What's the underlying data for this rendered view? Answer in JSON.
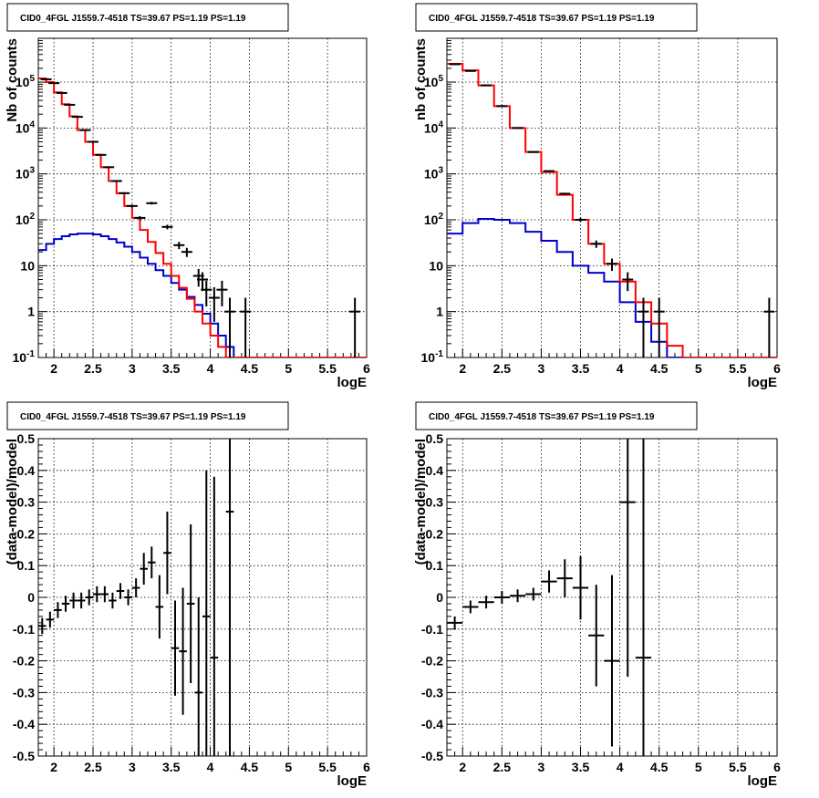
{
  "chart_data": [
    {
      "type": "line",
      "title": "CID0_4FGL J1559.7-4518 TS=39.67 PS=1.19 PS=1.19",
      "xlabel": "logE",
      "ylabel": "Nb of counts",
      "xlim": [
        1.8,
        6.0
      ],
      "ylim": [
        0.1,
        900000
      ],
      "yscale": "log",
      "grid": true,
      "x_ticks": [
        "2",
        "2.5",
        "3",
        "3.5",
        "4",
        "4.5",
        "5",
        "5.5",
        "6"
      ],
      "y_ticks": [
        {
          "base": "10",
          "exp": "-1"
        },
        {
          "base": "1",
          "exp": ""
        },
        {
          "base": "10",
          "exp": ""
        },
        {
          "base": "10",
          "exp": "2"
        },
        {
          "base": "10",
          "exp": "3"
        },
        {
          "base": "10",
          "exp": "4"
        },
        {
          "base": "10",
          "exp": "5"
        }
      ],
      "colors": {
        "model": "#ff0000",
        "component": "#0000cc",
        "data": "#000000"
      },
      "bin_edges": [
        1.8,
        1.9,
        2.0,
        2.1,
        2.2,
        2.3,
        2.4,
        2.5,
        2.6,
        2.7,
        2.8,
        2.9,
        3.0,
        3.1,
        3.2,
        3.3,
        3.4,
        3.5,
        3.6,
        3.7,
        3.8,
        3.9,
        4.0,
        4.1,
        4.2,
        4.3,
        4.4,
        4.5,
        4.6,
        4.7,
        4.8,
        4.9,
        5.0,
        5.1,
        5.2,
        5.3,
        5.4,
        5.5,
        5.6,
        5.7,
        5.8,
        5.9,
        6.0
      ],
      "model": [
        120000,
        100000,
        60000,
        33000,
        18000,
        9000,
        5000,
        2600,
        1400,
        700,
        380,
        200,
        110,
        60,
        33,
        19,
        11,
        6,
        3.3,
        1.9,
        1.0,
        0.55,
        0.3,
        0.17,
        0.1,
        0.06,
        0.1,
        0.1,
        0.1,
        0.1,
        0.1,
        0.1,
        0.1,
        0.1,
        0.1,
        0.1,
        0.1,
        0.1,
        0.1,
        0.1,
        0.1,
        0.1
      ],
      "component": [
        22,
        30,
        38,
        44,
        48,
        50,
        50,
        48,
        44,
        38,
        32,
        26,
        20,
        15,
        11,
        8,
        6,
        4.2,
        3,
        2.1,
        1.4,
        0.9,
        0.55,
        0.3,
        0.17,
        0.1,
        0.1,
        0.1,
        0.1,
        0.1,
        0.1,
        0.1,
        0.1,
        0.1,
        0.1,
        0.1,
        0.1,
        0.1,
        0.1,
        0.1,
        0.1,
        0.1
      ],
      "data": [
        {
          "x": 1.9,
          "y": 115000,
          "err": 340
        },
        {
          "x": 2.0,
          "y": 95000,
          "err": 310
        },
        {
          "x": 2.1,
          "y": 58000,
          "err": 240
        },
        {
          "x": 2.2,
          "y": 32000,
          "err": 180
        },
        {
          "x": 2.3,
          "y": 17500,
          "err": 130
        },
        {
          "x": 2.4,
          "y": 9000,
          "err": 95
        },
        {
          "x": 2.5,
          "y": 5000,
          "err": 70
        },
        {
          "x": 2.6,
          "y": 2600,
          "err": 51
        },
        {
          "x": 2.7,
          "y": 1400,
          "err": 37
        },
        {
          "x": 2.8,
          "y": 700,
          "err": 26
        },
        {
          "x": 2.9,
          "y": 380,
          "err": 19
        },
        {
          "x": 3.0,
          "y": 200,
          "err": 14
        },
        {
          "x": 3.1,
          "y": 110,
          "err": 10
        },
        {
          "x": 3.25,
          "y": 230,
          "err": 15
        },
        {
          "x": 3.45,
          "y": 70,
          "err": 8
        },
        {
          "x": 3.6,
          "y": 28,
          "err": 5
        },
        {
          "x": 3.7,
          "y": 20,
          "err": 4.5
        },
        {
          "x": 3.85,
          "y": 6,
          "err": 2.5
        },
        {
          "x": 3.9,
          "y": 5,
          "err": 2.2
        },
        {
          "x": 3.95,
          "y": 3,
          "err": 1.7
        },
        {
          "x": 4.05,
          "y": 2,
          "err": 1.4
        },
        {
          "x": 4.15,
          "y": 3,
          "err": 1.7
        },
        {
          "x": 4.25,
          "y": 1,
          "err": 1.0
        },
        {
          "x": 4.45,
          "y": 1,
          "err": 1.0
        },
        {
          "x": 5.85,
          "y": 1,
          "err": 1.0
        }
      ]
    },
    {
      "type": "line",
      "title": "CID0_4FGL J1559.7-4518 TS=39.67 PS=1.19 PS=1.19",
      "xlabel": "logE",
      "ylabel": "nb of counts",
      "xlim": [
        1.8,
        6.0
      ],
      "ylim": [
        0.1,
        900000
      ],
      "yscale": "log",
      "grid": true,
      "x_ticks": [
        "2",
        "2.5",
        "3",
        "3.5",
        "4",
        "4.5",
        "5",
        "5.5",
        "6"
      ],
      "y_ticks": [
        {
          "base": "10",
          "exp": "-1"
        },
        {
          "base": "1",
          "exp": ""
        },
        {
          "base": "10",
          "exp": ""
        },
        {
          "base": "10",
          "exp": "2"
        },
        {
          "base": "10",
          "exp": "3"
        },
        {
          "base": "10",
          "exp": "4"
        },
        {
          "base": "10",
          "exp": "5"
        }
      ],
      "colors": {
        "model": "#ff0000",
        "component": "#0000cc",
        "data": "#000000"
      },
      "bin_edges": [
        1.8,
        2.0,
        2.2,
        2.4,
        2.6,
        2.8,
        3.0,
        3.2,
        3.4,
        3.6,
        3.8,
        4.0,
        4.2,
        4.4,
        4.6,
        4.8,
        5.0,
        5.2,
        5.4,
        5.6,
        5.8,
        6.0
      ],
      "model": [
        250000,
        180000,
        85000,
        30000,
        10000,
        3000,
        1100,
        350,
        100,
        30,
        11,
        4.5,
        1.6,
        0.55,
        0.18,
        0.1,
        0.1,
        0.1,
        0.1,
        0.1,
        0.1
      ],
      "component": [
        50,
        85,
        105,
        100,
        85,
        55,
        35,
        20,
        10,
        7,
        4.5,
        1.6,
        0.6,
        0.22,
        0.1,
        0.1,
        0.1,
        0.1,
        0.1,
        0.1,
        0.1
      ],
      "data": [
        {
          "x": 1.9,
          "y": 245000,
          "err": 500
        },
        {
          "x": 2.1,
          "y": 175000,
          "err": 420
        },
        {
          "x": 2.3,
          "y": 85000,
          "err": 290
        },
        {
          "x": 2.5,
          "y": 30000,
          "err": 170
        },
        {
          "x": 2.7,
          "y": 10000,
          "err": 100
        },
        {
          "x": 2.9,
          "y": 3000,
          "err": 55
        },
        {
          "x": 3.1,
          "y": 1150,
          "err": 34
        },
        {
          "x": 3.3,
          "y": 370,
          "err": 19
        },
        {
          "x": 3.5,
          "y": 100,
          "err": 10
        },
        {
          "x": 3.7,
          "y": 30,
          "err": 5.5
        },
        {
          "x": 3.9,
          "y": 11,
          "err": 3.3
        },
        {
          "x": 4.1,
          "y": 5,
          "err": 2.2
        },
        {
          "x": 4.3,
          "y": 1,
          "err": 1.0
        },
        {
          "x": 4.5,
          "y": 1,
          "err": 1.0
        },
        {
          "x": 5.9,
          "y": 1,
          "err": 1.0
        }
      ]
    },
    {
      "type": "scatter",
      "title": "CID0_4FGL J1559.7-4518 TS=39.67 PS=1.19 PS=1.19",
      "xlabel": "logE",
      "ylabel": "(data-model)/model",
      "xlim": [
        1.8,
        6.0
      ],
      "ylim": [
        -0.5,
        0.5
      ],
      "yscale": "linear",
      "grid": true,
      "x_ticks": [
        "2",
        "2.5",
        "3",
        "3.5",
        "4",
        "4.5",
        "5",
        "5.5",
        "6"
      ],
      "y_ticks": [
        "-0.5",
        "-0.4",
        "-0.3",
        "-0.2",
        "-0.1",
        "0",
        "0.1",
        "0.2",
        "0.3",
        "0.4",
        "0.5"
      ],
      "colors": {
        "data": "#000000"
      },
      "points": [
        {
          "x": 1.85,
          "y": -0.09,
          "xerr": 0.05,
          "yerr": 0.025
        },
        {
          "x": 1.95,
          "y": -0.07,
          "xerr": 0.05,
          "yerr": 0.025
        },
        {
          "x": 2.05,
          "y": -0.04,
          "xerr": 0.05,
          "yerr": 0.025
        },
        {
          "x": 2.15,
          "y": -0.02,
          "xerr": 0.05,
          "yerr": 0.025
        },
        {
          "x": 2.25,
          "y": -0.01,
          "xerr": 0.05,
          "yerr": 0.025
        },
        {
          "x": 2.35,
          "y": -0.01,
          "xerr": 0.05,
          "yerr": 0.025
        },
        {
          "x": 2.45,
          "y": 0.0,
          "xerr": 0.05,
          "yerr": 0.025
        },
        {
          "x": 2.55,
          "y": 0.01,
          "xerr": 0.05,
          "yerr": 0.025
        },
        {
          "x": 2.65,
          "y": 0.01,
          "xerr": 0.05,
          "yerr": 0.025
        },
        {
          "x": 2.75,
          "y": -0.01,
          "xerr": 0.05,
          "yerr": 0.025
        },
        {
          "x": 2.85,
          "y": 0.02,
          "xerr": 0.05,
          "yerr": 0.025
        },
        {
          "x": 2.95,
          "y": 0.0,
          "xerr": 0.05,
          "yerr": 0.025
        },
        {
          "x": 3.05,
          "y": 0.03,
          "xerr": 0.05,
          "yerr": 0.03
        },
        {
          "x": 3.15,
          "y": 0.09,
          "xerr": 0.05,
          "yerr": 0.05
        },
        {
          "x": 3.25,
          "y": 0.11,
          "xerr": 0.05,
          "yerr": 0.05
        },
        {
          "x": 3.35,
          "y": -0.03,
          "xerr": 0.05,
          "yerr": 0.1
        },
        {
          "x": 3.45,
          "y": 0.14,
          "xerr": 0.05,
          "yerr": 0.13
        },
        {
          "x": 3.55,
          "y": -0.16,
          "xerr": 0.05,
          "yerr": 0.15
        },
        {
          "x": 3.65,
          "y": -0.17,
          "xerr": 0.05,
          "yerr": 0.2
        },
        {
          "x": 3.75,
          "y": -0.02,
          "xerr": 0.05,
          "yerr": 0.25
        },
        {
          "x": 3.85,
          "y": -0.3,
          "xerr": 0.05,
          "yerr": 0.3
        },
        {
          "x": 3.95,
          "y": -0.06,
          "xerr": 0.05,
          "yerr": 0.46
        },
        {
          "x": 4.05,
          "y": -0.19,
          "xerr": 0.05,
          "yerr": 0.57
        },
        {
          "x": 4.25,
          "y": 0.27,
          "xerr": 0.05,
          "yerr": 1.0
        }
      ]
    },
    {
      "type": "scatter",
      "title": "CID0_4FGL J1559.7-4518 TS=39.67 PS=1.19 PS=1.19",
      "xlabel": "logE",
      "ylabel": "(data-model)/model",
      "xlim": [
        1.8,
        6.0
      ],
      "ylim": [
        -0.5,
        0.5
      ],
      "yscale": "linear",
      "grid": true,
      "x_ticks": [
        "2",
        "2.5",
        "3",
        "3.5",
        "4",
        "4.5",
        "5",
        "5.5",
        "6"
      ],
      "y_ticks": [
        "-0.5",
        "-0.4",
        "-0.3",
        "-0.2",
        "-0.1",
        "0",
        "0.1",
        "0.2",
        "0.3",
        "0.4",
        "0.5"
      ],
      "colors": {
        "data": "#000000"
      },
      "points": [
        {
          "x": 1.9,
          "y": -0.08,
          "xerr": 0.1,
          "yerr": 0.02
        },
        {
          "x": 2.1,
          "y": -0.03,
          "xerr": 0.1,
          "yerr": 0.02
        },
        {
          "x": 2.3,
          "y": -0.015,
          "xerr": 0.1,
          "yerr": 0.02
        },
        {
          "x": 2.5,
          "y": 0.0,
          "xerr": 0.1,
          "yerr": 0.02
        },
        {
          "x": 2.7,
          "y": 0.005,
          "xerr": 0.1,
          "yerr": 0.02
        },
        {
          "x": 2.9,
          "y": 0.01,
          "xerr": 0.1,
          "yerr": 0.02
        },
        {
          "x": 3.1,
          "y": 0.05,
          "xerr": 0.1,
          "yerr": 0.035
        },
        {
          "x": 3.3,
          "y": 0.06,
          "xerr": 0.1,
          "yerr": 0.06
        },
        {
          "x": 3.5,
          "y": 0.03,
          "xerr": 0.1,
          "yerr": 0.1
        },
        {
          "x": 3.7,
          "y": -0.12,
          "xerr": 0.1,
          "yerr": 0.16
        },
        {
          "x": 3.9,
          "y": -0.2,
          "xerr": 0.1,
          "yerr": 0.27
        },
        {
          "x": 4.1,
          "y": 0.3,
          "xerr": 0.1,
          "yerr": 0.55
        },
        {
          "x": 4.3,
          "y": -0.19,
          "xerr": 0.1,
          "yerr": 1.0
        }
      ]
    }
  ]
}
